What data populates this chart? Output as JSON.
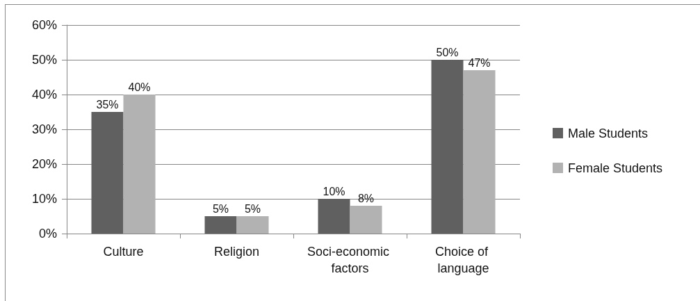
{
  "chart_data": {
    "type": "bar",
    "categories": [
      "Culture",
      "Religion",
      "Soci-economic factors",
      "Choice of language"
    ],
    "series": [
      {
        "name": "Male Students",
        "color": "#606060",
        "values": [
          35,
          5,
          10,
          50
        ],
        "value_labels": [
          "35%",
          "5%",
          "10%",
          "50%"
        ]
      },
      {
        "name": "Female Students",
        "color": "#b2b2b2",
        "values": [
          40,
          5,
          8,
          47
        ],
        "value_labels": [
          "40%",
          "5%",
          "8%",
          "47%"
        ]
      }
    ],
    "ylim": [
      0,
      60
    ],
    "yticks": [
      {
        "value": 0,
        "label": "0%"
      },
      {
        "value": 10,
        "label": "10%"
      },
      {
        "value": 20,
        "label": "20%"
      },
      {
        "value": 30,
        "label": "30%"
      },
      {
        "value": 40,
        "label": "40%"
      },
      {
        "value": 50,
        "label": "50%"
      },
      {
        "value": 60,
        "label": "60%"
      }
    ],
    "grid": "y",
    "legend": "right"
  }
}
